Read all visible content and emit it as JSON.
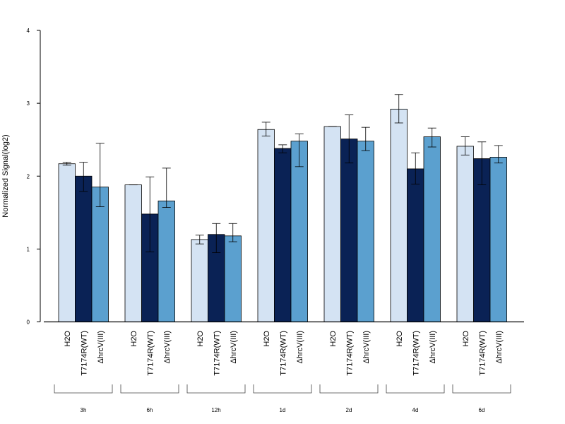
{
  "chart_data": {
    "type": "bar",
    "title": "",
    "xlabel": "",
    "ylabel": "Normalized Signal(log2)",
    "ylim": [
      0,
      4
    ],
    "yticks": [
      "0",
      "1",
      "2",
      "3",
      "4"
    ],
    "groups": [
      "3h",
      "6h",
      "12h",
      "1d",
      "2d",
      "4d",
      "6d"
    ],
    "bar_labels": [
      "H2O",
      "T7174R(WT)",
      "ΔhrcV(III)"
    ],
    "series": [
      {
        "color": "#d4e3f3",
        "values": [
          2.17,
          1.88,
          1.13,
          2.64,
          2.68,
          2.92,
          2.41
        ],
        "err_low": [
          2.15,
          1.88,
          1.07,
          2.55,
          2.68,
          2.73,
          2.29
        ],
        "err_high": [
          2.19,
          1.88,
          1.19,
          2.74,
          2.68,
          3.12,
          2.54
        ]
      },
      {
        "color": "#0a2255",
        "values": [
          2.0,
          1.48,
          1.2,
          2.38,
          2.51,
          2.1,
          2.24
        ],
        "err_low": [
          1.79,
          0.96,
          0.95,
          2.32,
          2.18,
          1.89,
          1.88
        ],
        "err_high": [
          2.19,
          1.99,
          1.35,
          2.43,
          2.84,
          2.32,
          2.47
        ]
      },
      {
        "color": "#5ba0cf",
        "values": [
          1.85,
          1.66,
          1.18,
          2.48,
          2.48,
          2.54,
          2.26
        ],
        "err_low": [
          1.58,
          1.57,
          1.1,
          2.13,
          2.35,
          2.4,
          2.18
        ],
        "err_high": [
          2.45,
          2.11,
          1.35,
          2.58,
          2.67,
          2.66,
          2.42
        ]
      }
    ]
  }
}
